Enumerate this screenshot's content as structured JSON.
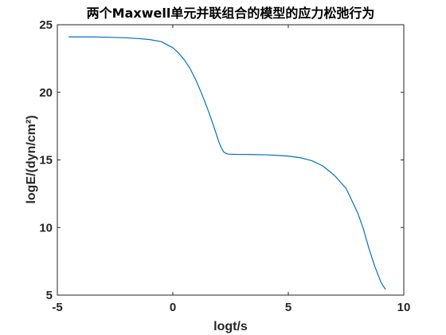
{
  "chart_data": {
    "type": "line",
    "title": "两个Maxwell单元并联组合的模型的应力松弛行为",
    "xlabel": "logt/s",
    "ylabel": "logE/(dyn/cm²)",
    "xlim": [
      -5,
      10
    ],
    "ylim": [
      5,
      25
    ],
    "xticks": [
      -5,
      0,
      5,
      10
    ],
    "yticks": [
      5,
      10,
      15,
      20,
      25
    ],
    "grid": false,
    "box": true,
    "series": [
      {
        "color": "#0072BD",
        "x": [
          -4.5,
          -4.0,
          -3.5,
          -3.0,
          -2.5,
          -2.0,
          -1.5,
          -1.0,
          -0.5,
          0.0,
          0.25,
          0.5,
          0.75,
          1.0,
          1.25,
          1.5,
          1.75,
          2.0,
          2.1,
          2.2,
          2.3,
          2.4,
          2.5,
          2.75,
          3.0,
          3.5,
          4.0,
          4.5,
          5.0,
          5.5,
          6.0,
          6.5,
          7.0,
          7.5,
          8.0,
          8.25,
          8.5,
          8.75,
          9.0,
          9.1,
          9.2
        ],
        "y": [
          24.1,
          24.1,
          24.1,
          24.08,
          24.06,
          24.03,
          23.98,
          23.9,
          23.75,
          23.3,
          22.9,
          22.4,
          21.75,
          20.9,
          19.9,
          18.8,
          17.6,
          16.3,
          15.9,
          15.6,
          15.48,
          15.43,
          15.42,
          15.41,
          15.41,
          15.4,
          15.38,
          15.34,
          15.28,
          15.17,
          14.95,
          14.55,
          13.85,
          12.9,
          11.1,
          9.9,
          8.4,
          7.1,
          6.0,
          5.7,
          5.45
        ]
      }
    ]
  }
}
